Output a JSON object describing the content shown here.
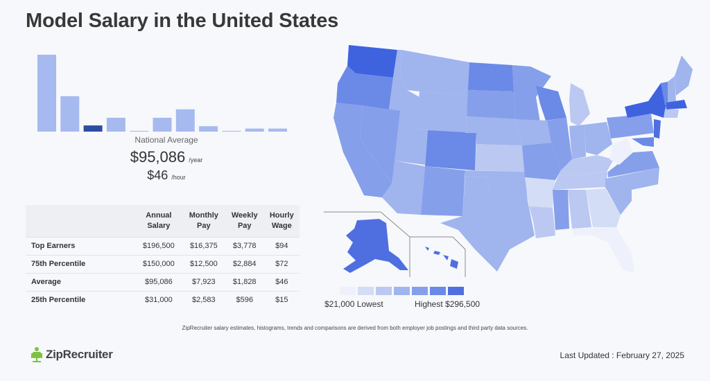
{
  "title": "Model Salary in the United States",
  "histogram": {
    "label": "National Average",
    "bars": [
      100,
      46,
      8,
      18,
      1,
      18,
      29,
      7,
      1,
      4,
      4
    ],
    "highlight_index": 2,
    "color": "#a6baef",
    "highlight_color": "#2b4ea2"
  },
  "average": {
    "annual": "$95,086",
    "annual_unit": "/year",
    "hourly": "$46",
    "hourly_unit": "/hour"
  },
  "table": {
    "headers": [
      [
        "Annual",
        "Salary"
      ],
      [
        "Monthly",
        "Pay"
      ],
      [
        "Weekly",
        "Pay"
      ],
      [
        "Hourly",
        "Wage"
      ]
    ],
    "rows": [
      {
        "label": "Top Earners",
        "values": [
          "$196,500",
          "$16,375",
          "$3,778",
          "$94"
        ]
      },
      {
        "label": "75th Percentile",
        "values": [
          "$150,000",
          "$12,500",
          "$2,884",
          "$72"
        ]
      },
      {
        "label": "Average",
        "values": [
          "$95,086",
          "$7,923",
          "$1,828",
          "$46"
        ]
      },
      {
        "label": "25th Percentile",
        "values": [
          "$31,000",
          "$2,583",
          "$596",
          "$15"
        ]
      }
    ]
  },
  "legend": {
    "low": "$21,000 Lowest",
    "high": "Highest $296,500",
    "colors": [
      "#eef1fb",
      "#d4ddf6",
      "#bac8f2",
      "#a0b4ee",
      "#869fea",
      "#6b89e6",
      "#4f6fe0"
    ]
  },
  "footnote": "ZipRecruiter salary estimates, histograms, trends and comparisons are derived from both employer job postings and third party data sources.",
  "logo": "ZipRecruiter",
  "updated": "Last Updated : February 27, 2025"
}
